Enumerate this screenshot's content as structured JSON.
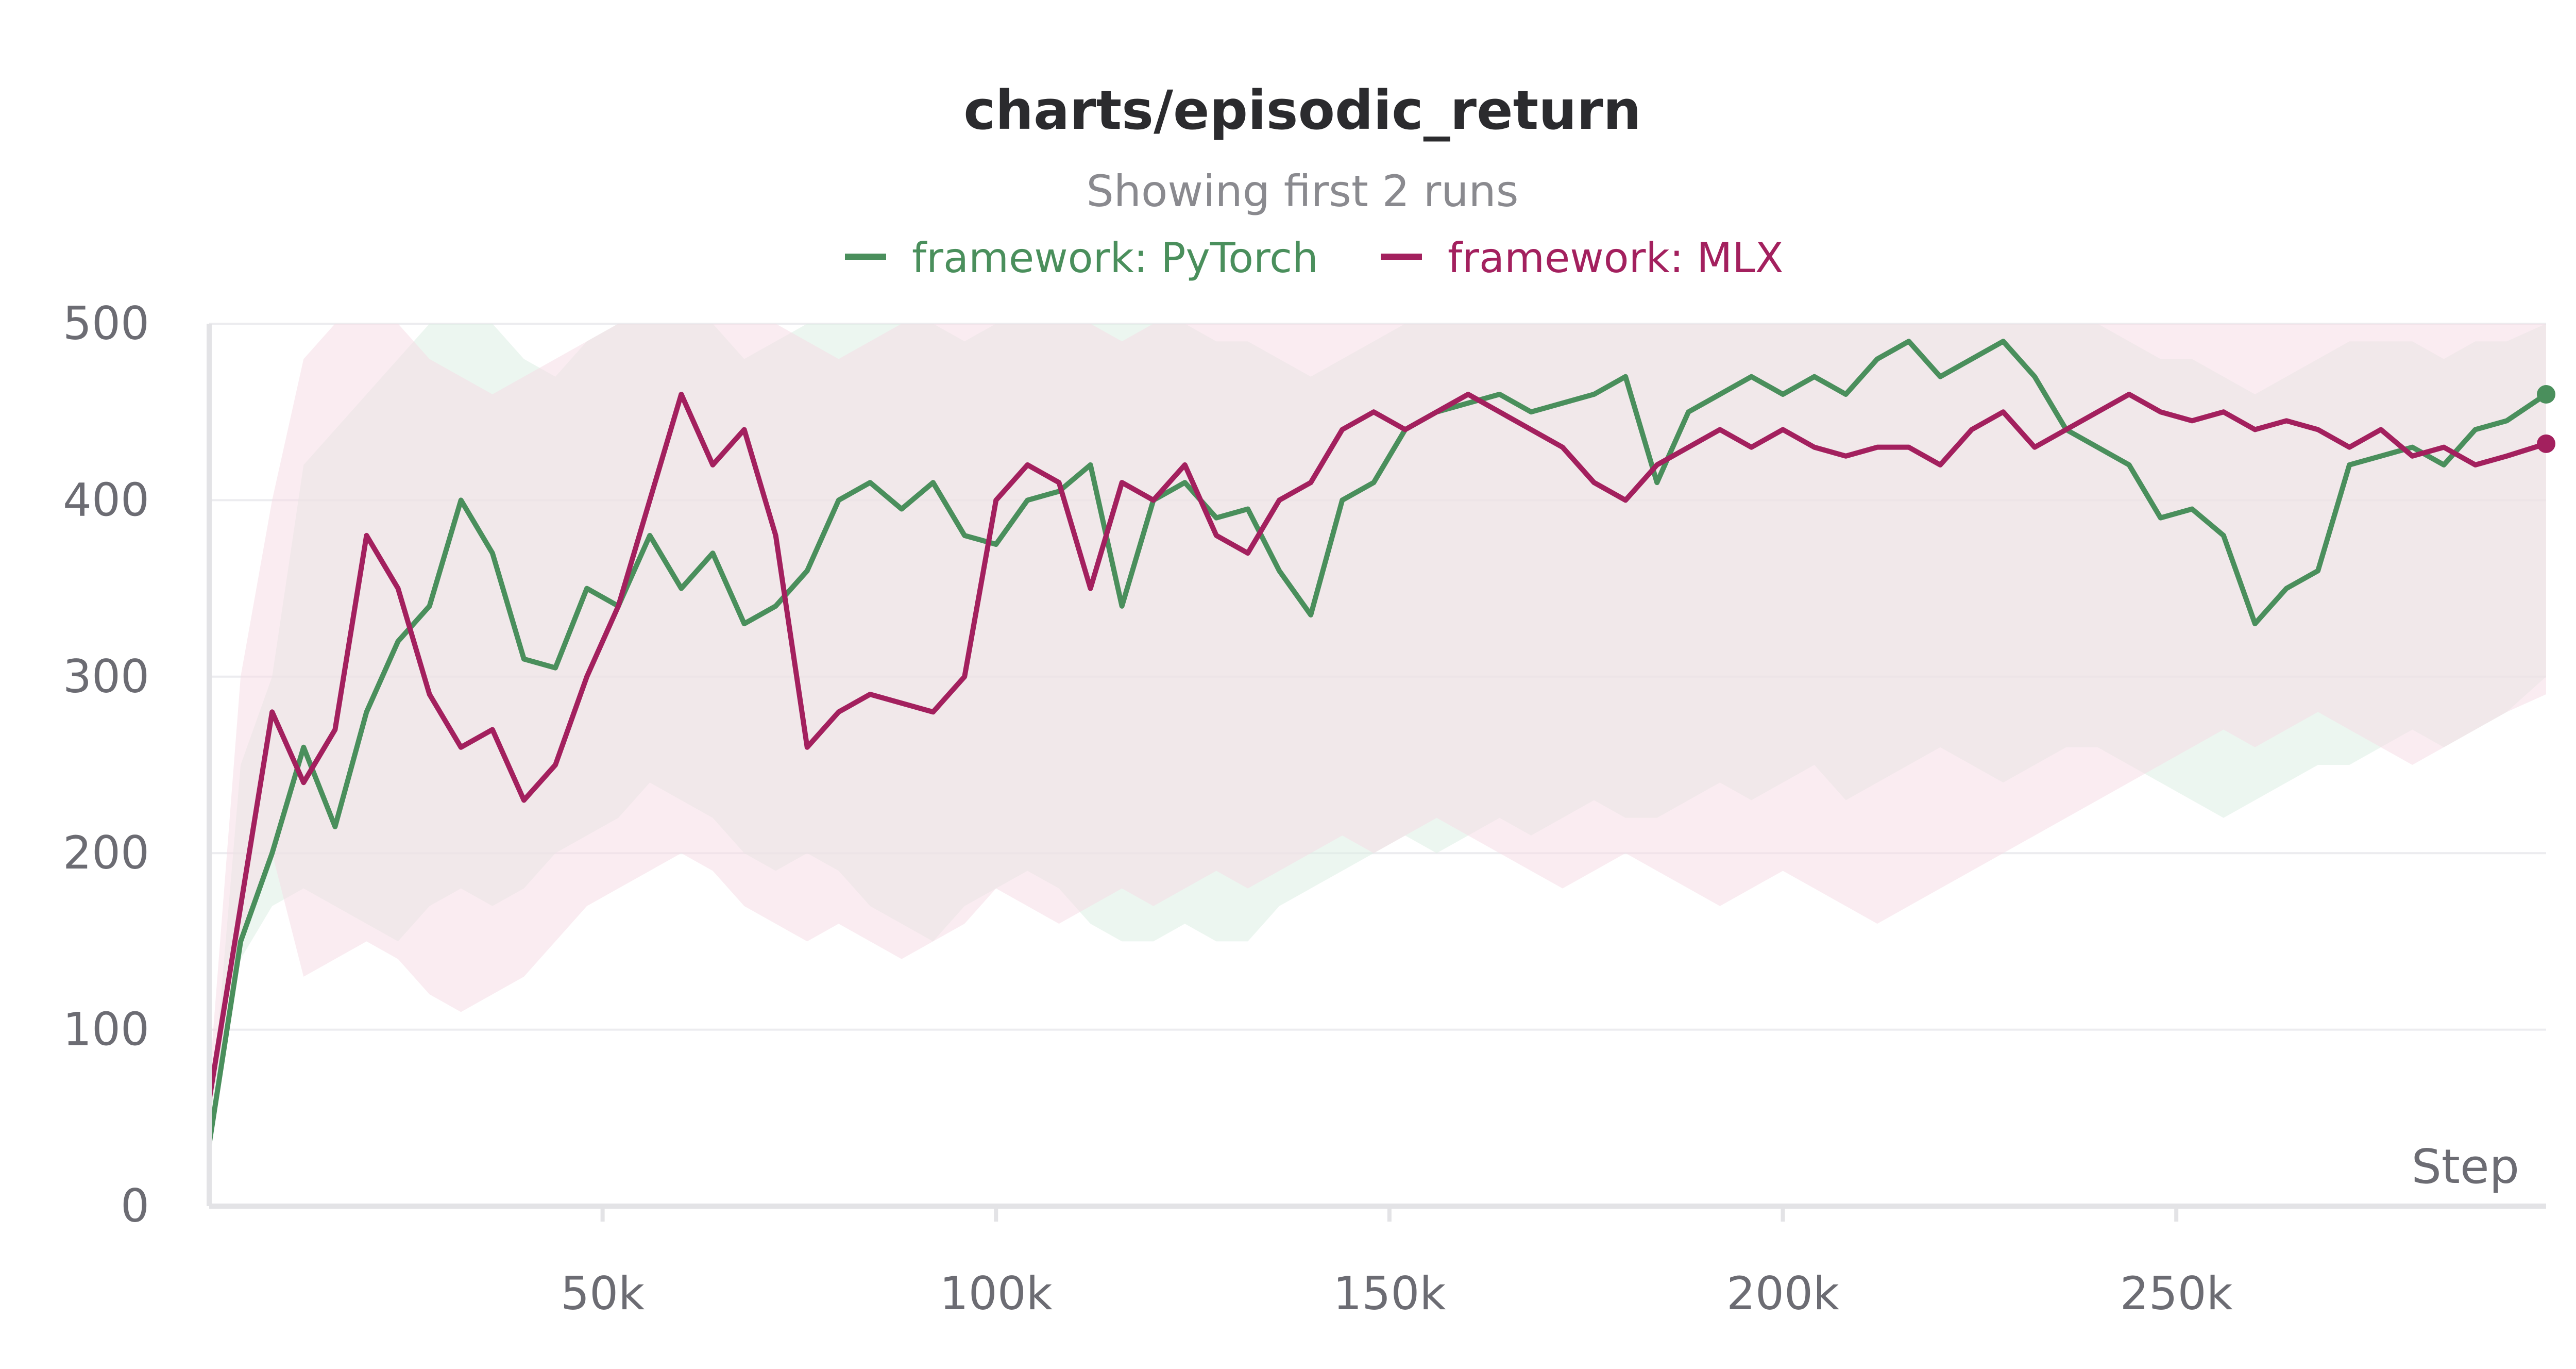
{
  "chart_data": {
    "type": "line",
    "title": "charts/episodic_return",
    "subtitle": "Showing first 2 runs",
    "xlabel": "Step",
    "ylabel": "",
    "xlim": [
      0,
      297000
    ],
    "ylim": [
      0,
      500
    ],
    "yticks": [
      0,
      100,
      200,
      300,
      400,
      500
    ],
    "xticks": [
      50000,
      100000,
      150000,
      200000,
      250000
    ],
    "xtick_labels": [
      "50k",
      "100k",
      "150k",
      "200k",
      "250k"
    ],
    "grid": "horizontal",
    "legend_position": "top",
    "series": [
      {
        "name": "framework: PyTorch",
        "color": "#4a8f5c",
        "band_color": "#dcefe3",
        "x": [
          0,
          4000,
          8000,
          12000,
          16000,
          20000,
          24000,
          28000,
          32000,
          36000,
          40000,
          44000,
          48000,
          52000,
          56000,
          60000,
          64000,
          68000,
          72000,
          76000,
          80000,
          84000,
          88000,
          92000,
          96000,
          100000,
          104000,
          108000,
          112000,
          116000,
          120000,
          124000,
          128000,
          132000,
          136000,
          140000,
          144000,
          148000,
          152000,
          156000,
          160000,
          164000,
          168000,
          172000,
          176000,
          180000,
          184000,
          188000,
          192000,
          196000,
          200000,
          204000,
          208000,
          212000,
          216000,
          220000,
          224000,
          228000,
          232000,
          236000,
          240000,
          244000,
          248000,
          252000,
          256000,
          260000,
          264000,
          268000,
          272000,
          276000,
          280000,
          284000,
          288000,
          292000,
          297000
        ],
        "y": [
          35,
          150,
          200,
          260,
          215,
          280,
          320,
          340,
          400,
          370,
          310,
          305,
          350,
          340,
          380,
          350,
          370,
          330,
          340,
          360,
          400,
          410,
          395,
          410,
          380,
          375,
          400,
          405,
          420,
          340,
          400,
          410,
          390,
          395,
          360,
          335,
          400,
          410,
          440,
          450,
          455,
          460,
          450,
          455,
          460,
          470,
          410,
          450,
          460,
          470,
          460,
          470,
          460,
          480,
          490,
          470,
          480,
          490,
          470,
          440,
          430,
          420,
          390,
          395,
          380,
          330,
          350,
          360,
          420,
          425,
          430,
          420,
          440,
          445,
          460
        ],
        "lower": [
          30,
          140,
          170,
          180,
          170,
          160,
          150,
          170,
          180,
          170,
          180,
          200,
          210,
          220,
          240,
          230,
          220,
          200,
          190,
          200,
          190,
          170,
          160,
          150,
          170,
          180,
          190,
          180,
          160,
          150,
          150,
          160,
          150,
          150,
          170,
          180,
          190,
          200,
          210,
          200,
          210,
          220,
          210,
          220,
          230,
          220,
          220,
          230,
          240,
          230,
          240,
          250,
          230,
          240,
          250,
          260,
          250,
          240,
          250,
          260,
          260,
          250,
          240,
          230,
          220,
          230,
          240,
          250,
          250,
          260,
          270,
          260,
          270,
          280,
          300
        ],
        "upper": [
          40,
          250,
          300,
          420,
          440,
          460,
          480,
          500,
          500,
          500,
          480,
          470,
          490,
          500,
          500,
          500,
          500,
          480,
          490,
          500,
          500,
          500,
          500,
          500,
          490,
          500,
          500,
          500,
          500,
          500,
          500,
          500,
          490,
          490,
          480,
          470,
          480,
          490,
          500,
          500,
          500,
          500,
          500,
          500,
          500,
          500,
          500,
          500,
          500,
          500,
          500,
          500,
          500,
          500,
          500,
          500,
          500,
          500,
          500,
          500,
          500,
          490,
          480,
          480,
          470,
          460,
          470,
          480,
          490,
          490,
          490,
          480,
          490,
          490,
          500
        ]
      },
      {
        "name": "framework: MLX",
        "color": "#a3205e",
        "band_color": "#f5dde6",
        "x": [
          0,
          4000,
          8000,
          12000,
          16000,
          20000,
          24000,
          28000,
          32000,
          36000,
          40000,
          44000,
          48000,
          52000,
          56000,
          60000,
          64000,
          68000,
          72000,
          76000,
          80000,
          84000,
          88000,
          92000,
          96000,
          100000,
          104000,
          108000,
          112000,
          116000,
          120000,
          124000,
          128000,
          132000,
          136000,
          140000,
          144000,
          148000,
          152000,
          156000,
          160000,
          164000,
          168000,
          172000,
          176000,
          180000,
          184000,
          188000,
          192000,
          196000,
          200000,
          204000,
          208000,
          212000,
          216000,
          220000,
          224000,
          228000,
          232000,
          236000,
          240000,
          244000,
          248000,
          252000,
          256000,
          260000,
          264000,
          268000,
          272000,
          276000,
          280000,
          284000,
          288000,
          292000,
          297000
        ],
        "y": [
          60,
          170,
          280,
          240,
          270,
          380,
          350,
          290,
          260,
          270,
          230,
          250,
          300,
          340,
          400,
          460,
          420,
          440,
          380,
          260,
          280,
          290,
          285,
          280,
          300,
          400,
          420,
          410,
          350,
          410,
          400,
          420,
          380,
          370,
          400,
          410,
          440,
          450,
          440,
          450,
          460,
          450,
          440,
          430,
          410,
          400,
          420,
          430,
          440,
          430,
          440,
          430,
          425,
          430,
          430,
          420,
          440,
          450,
          430,
          440,
          450,
          460,
          450,
          445,
          450,
          440,
          445,
          440,
          430,
          440,
          425,
          430,
          420,
          425,
          432
        ],
        "lower": [
          50,
          150,
          200,
          130,
          140,
          150,
          140,
          120,
          110,
          120,
          130,
          150,
          170,
          180,
          190,
          200,
          190,
          170,
          160,
          150,
          160,
          150,
          140,
          150,
          160,
          180,
          170,
          160,
          170,
          180,
          170,
          180,
          190,
          180,
          190,
          200,
          210,
          200,
          210,
          220,
          210,
          200,
          190,
          180,
          190,
          200,
          190,
          180,
          170,
          180,
          190,
          180,
          170,
          160,
          170,
          180,
          190,
          200,
          210,
          220,
          230,
          240,
          250,
          260,
          270,
          260,
          270,
          280,
          270,
          260,
          250,
          260,
          270,
          280,
          290
        ],
        "upper": [
          70,
          300,
          400,
          480,
          500,
          500,
          500,
          480,
          470,
          460,
          470,
          480,
          490,
          500,
          500,
          500,
          500,
          500,
          500,
          490,
          480,
          490,
          500,
          500,
          500,
          500,
          500,
          500,
          500,
          490,
          500,
          500,
          500,
          500,
          500,
          500,
          500,
          500,
          500,
          500,
          500,
          500,
          500,
          500,
          500,
          500,
          500,
          500,
          500,
          500,
          500,
          500,
          500,
          500,
          500,
          500,
          500,
          500,
          500,
          500,
          500,
          500,
          500,
          500,
          500,
          500,
          500,
          500,
          500,
          500,
          500,
          500,
          500,
          500,
          500
        ]
      }
    ]
  }
}
